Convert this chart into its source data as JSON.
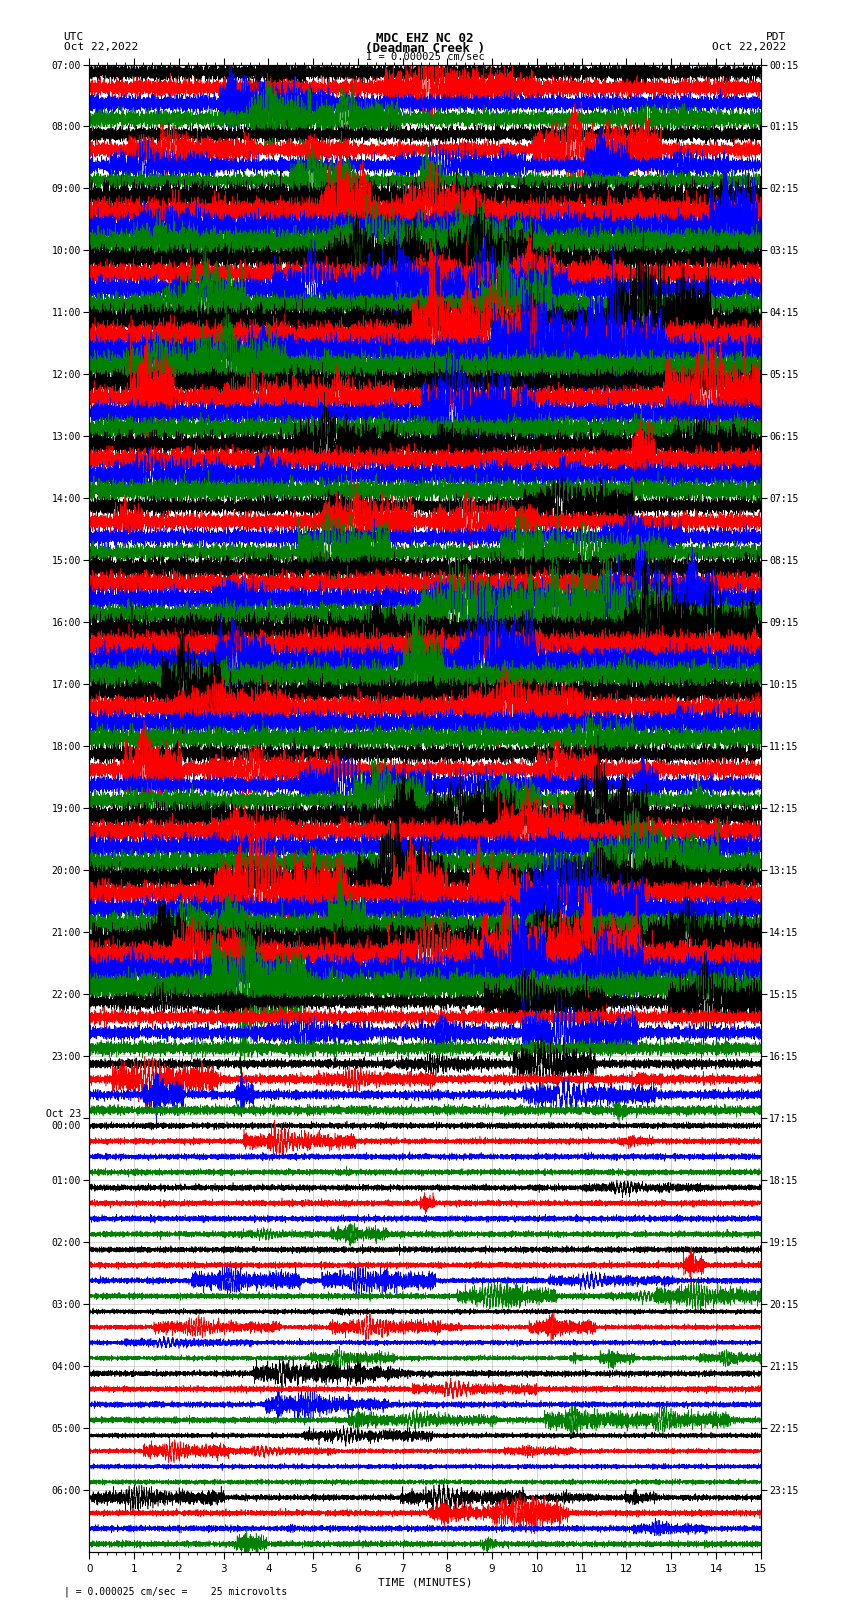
{
  "title_line1": "MDC EHZ NC 02",
  "title_line2": "(Deadman Creek )",
  "title_line3": "I = 0.000025 cm/sec",
  "utc_label": "UTC",
  "utc_date": "Oct 22,2022",
  "pdt_label": "PDT",
  "pdt_date": "Oct 22,2022",
  "xlabel": "TIME (MINUTES)",
  "scale_label": "| = 0.000025 cm/sec =    25 microvolts",
  "left_times": [
    "07:00",
    "08:00",
    "09:00",
    "10:00",
    "11:00",
    "12:00",
    "13:00",
    "14:00",
    "15:00",
    "16:00",
    "17:00",
    "18:00",
    "19:00",
    "20:00",
    "21:00",
    "22:00",
    "23:00",
    "Oct 23\n00:00",
    "01:00",
    "02:00",
    "03:00",
    "04:00",
    "05:00",
    "06:00"
  ],
  "right_times": [
    "00:15",
    "01:15",
    "02:15",
    "03:15",
    "04:15",
    "05:15",
    "06:15",
    "07:15",
    "08:15",
    "09:15",
    "10:15",
    "11:15",
    "12:15",
    "13:15",
    "14:15",
    "15:15",
    "16:15",
    "17:15",
    "18:15",
    "19:15",
    "20:15",
    "21:15",
    "22:15",
    "23:15"
  ],
  "n_rows": 24,
  "traces_per_row": 4,
  "colors": [
    "black",
    "red",
    "blue",
    "green"
  ],
  "bg_color": "white",
  "x_min": 0,
  "x_max": 15,
  "x_ticks": [
    0,
    1,
    2,
    3,
    4,
    5,
    6,
    7,
    8,
    9,
    10,
    11,
    12,
    13,
    14,
    15
  ],
  "noise_seed": 42,
  "activity": [
    1.5,
    1.3,
    2.5,
    2.0,
    2.5,
    2.0,
    2.0,
    1.5,
    2.0,
    2.5,
    2.0,
    1.5,
    2.0,
    2.0,
    2.5,
    1.2,
    0.8,
    0.5,
    0.5,
    0.5,
    0.4,
    0.5,
    0.4,
    0.5
  ]
}
